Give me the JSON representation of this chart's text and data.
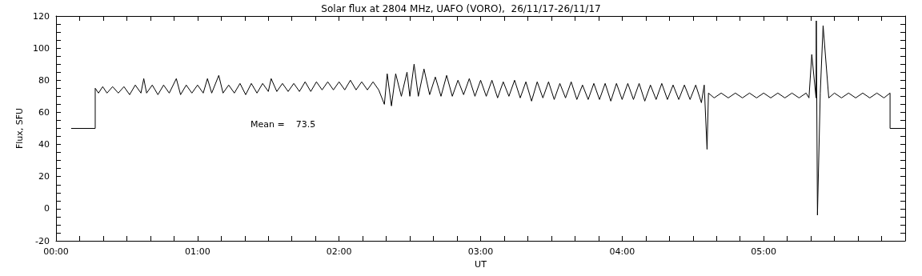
{
  "chart_data": {
    "type": "line",
    "title": "Solar flux at 2804 MHz, UAFO (VORO),  26/11/17-26/11/17",
    "xlabel": "UT",
    "ylabel": "Flux, SFU",
    "annotations": [
      "Mean =    73.5"
    ],
    "xlim": [
      0,
      6
    ],
    "ylim": [
      -20,
      120
    ],
    "xticks": [
      {
        "value": 0,
        "label": "00:00"
      },
      {
        "value": 0.1667,
        "label": null
      },
      {
        "value": 0.3333,
        "label": null
      },
      {
        "value": 0.5,
        "label": null
      },
      {
        "value": 0.6667,
        "label": null
      },
      {
        "value": 0.8333,
        "label": null
      },
      {
        "value": 1,
        "label": "01:00"
      },
      {
        "value": 1.1667,
        "label": null
      },
      {
        "value": 1.3333,
        "label": null
      },
      {
        "value": 1.5,
        "label": null
      },
      {
        "value": 1.6667,
        "label": null
      },
      {
        "value": 1.8333,
        "label": null
      },
      {
        "value": 2,
        "label": "02:00"
      },
      {
        "value": 2.1667,
        "label": null
      },
      {
        "value": 2.3333,
        "label": null
      },
      {
        "value": 2.5,
        "label": null
      },
      {
        "value": 2.6667,
        "label": null
      },
      {
        "value": 2.8333,
        "label": null
      },
      {
        "value": 3,
        "label": "03:00"
      },
      {
        "value": 3.1667,
        "label": null
      },
      {
        "value": 3.3333,
        "label": null
      },
      {
        "value": 3.5,
        "label": null
      },
      {
        "value": 3.6667,
        "label": null
      },
      {
        "value": 3.8333,
        "label": null
      },
      {
        "value": 4,
        "label": "04:00"
      },
      {
        "value": 4.1667,
        "label": null
      },
      {
        "value": 4.3333,
        "label": null
      },
      {
        "value": 4.5,
        "label": null
      },
      {
        "value": 4.6667,
        "label": null
      },
      {
        "value": 4.8333,
        "label": null
      },
      {
        "value": 5,
        "label": "05:00"
      },
      {
        "value": 5.1667,
        "label": null
      },
      {
        "value": 5.3333,
        "label": null
      },
      {
        "value": 5.5,
        "label": null
      },
      {
        "value": 5.6667,
        "label": null
      },
      {
        "value": 5.8333,
        "label": null
      }
    ],
    "yticks": [
      -20,
      {
        "value": -15,
        "label": null
      },
      {
        "value": -10,
        "label": null
      },
      {
        "value": -5,
        "label": null
      },
      0,
      {
        "value": 5,
        "label": null
      },
      {
        "value": 10,
        "label": null
      },
      {
        "value": 15,
        "label": null
      },
      20,
      {
        "value": 25,
        "label": null
      },
      {
        "value": 30,
        "label": null
      },
      {
        "value": 35,
        "label": null
      },
      40,
      {
        "value": 45,
        "label": null
      },
      {
        "value": 50,
        "label": null
      },
      {
        "value": 55,
        "label": null
      },
      60,
      {
        "value": 65,
        "label": null
      },
      {
        "value": 70,
        "label": null
      },
      {
        "value": 75,
        "label": null
      },
      80,
      {
        "value": 85,
        "label": null
      },
      {
        "value": 90,
        "label": null
      },
      {
        "value": 95,
        "label": null
      },
      100,
      {
        "value": 105,
        "label": null
      },
      {
        "value": 110,
        "label": null
      },
      {
        "value": 115,
        "label": null
      },
      120
    ],
    "grid": false,
    "marker": "none",
    "line_style": "solid",
    "series": [
      {
        "color": "#000000",
        "x": [
          0.107,
          0.277,
          0.277,
          0.3,
          0.33,
          0.36,
          0.4,
          0.44,
          0.48,
          0.52,
          0.56,
          0.6,
          0.62,
          0.64,
          0.68,
          0.72,
          0.76,
          0.8,
          0.85,
          0.88,
          0.92,
          0.96,
          1.0,
          1.04,
          1.07,
          1.1,
          1.15,
          1.18,
          1.22,
          1.26,
          1.3,
          1.34,
          1.38,
          1.42,
          1.46,
          1.5,
          1.52,
          1.56,
          1.6,
          1.64,
          1.68,
          1.72,
          1.76,
          1.8,
          1.84,
          1.88,
          1.92,
          1.96,
          2.0,
          2.04,
          2.08,
          2.12,
          2.16,
          2.2,
          2.24,
          2.28,
          2.32,
          2.34,
          2.37,
          2.4,
          2.44,
          2.48,
          2.5,
          2.53,
          2.56,
          2.6,
          2.64,
          2.68,
          2.72,
          2.76,
          2.8,
          2.84,
          2.88,
          2.92,
          2.96,
          3.0,
          3.04,
          3.08,
          3.12,
          3.16,
          3.2,
          3.24,
          3.28,
          3.32,
          3.36,
          3.4,
          3.44,
          3.48,
          3.52,
          3.56,
          3.6,
          3.64,
          3.68,
          3.72,
          3.76,
          3.8,
          3.84,
          3.88,
          3.92,
          3.96,
          4.0,
          4.04,
          4.08,
          4.12,
          4.16,
          4.2,
          4.24,
          4.28,
          4.32,
          4.36,
          4.4,
          4.44,
          4.48,
          4.52,
          4.56,
          4.58,
          4.6,
          4.61,
          4.65,
          4.7,
          4.75,
          4.8,
          4.85,
          4.9,
          4.95,
          5.0,
          5.05,
          5.1,
          5.15,
          5.2,
          5.25,
          5.3,
          5.32,
          5.34,
          5.37,
          5.372,
          5.38,
          5.4,
          5.42,
          5.46,
          5.5,
          5.55,
          5.6,
          5.65,
          5.7,
          5.75,
          5.8,
          5.85,
          5.893,
          5.893,
          6.0
        ],
        "values": [
          50,
          50,
          75,
          72,
          76,
          72,
          76,
          72,
          76,
          71,
          77,
          72,
          81,
          72,
          77,
          71,
          77,
          72,
          81,
          71,
          77,
          72,
          77,
          72,
          81,
          72,
          83,
          72,
          77,
          72,
          78,
          71,
          78,
          72,
          78,
          73,
          81,
          73,
          78,
          73,
          78,
          73,
          79,
          73,
          79,
          74,
          79,
          74,
          79,
          74,
          80,
          74,
          79,
          74,
          79,
          74,
          65,
          84,
          64,
          84,
          70,
          85,
          70,
          90,
          70,
          87,
          71,
          82,
          70,
          83,
          70,
          80,
          71,
          81,
          70,
          80,
          70,
          80,
          69,
          79,
          70,
          80,
          69,
          79,
          67,
          79,
          69,
          79,
          68,
          78,
          69,
          79,
          68,
          77,
          68,
          78,
          68,
          78,
          67,
          78,
          68,
          78,
          68,
          78,
          67,
          77,
          68,
          78,
          68,
          77,
          68,
          77,
          68,
          77,
          66,
          77,
          37,
          72,
          69,
          72,
          69,
          72,
          69,
          72,
          69,
          72,
          69,
          72,
          69,
          72,
          69,
          72,
          69,
          96,
          69,
          117,
          -4,
          72,
          114,
          69,
          72,
          69,
          72,
          69,
          72,
          69,
          72,
          69,
          72,
          50,
          50
        ]
      }
    ]
  }
}
